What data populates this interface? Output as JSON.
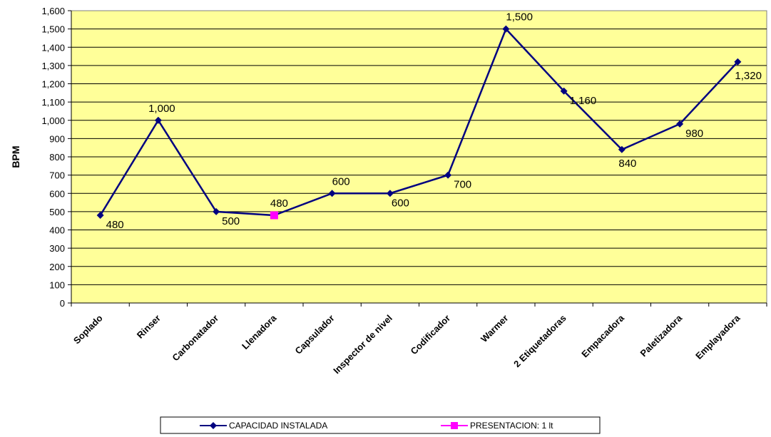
{
  "chart_data": {
    "type": "line",
    "categories": [
      "Soplado",
      "Rinser",
      "Carbonatador",
      "Llenadora",
      "Capsulador",
      "Inspector de nivel",
      "Codificador",
      "Warmer",
      "2 Etiquetadoras",
      "Empacadora",
      "Paletizadora",
      "Emplayadora"
    ],
    "series": [
      {
        "name": "CAPACIDAD INSTALADA",
        "values": [
          480,
          1000,
          500,
          480,
          600,
          600,
          700,
          1500,
          1160,
          840,
          980,
          1320
        ],
        "color": "#000080",
        "marker": "diamond"
      },
      {
        "name": "PRESENTACION: 1 lt",
        "values": [
          null,
          null,
          null,
          480,
          null,
          null,
          null,
          null,
          null,
          null,
          null,
          null
        ],
        "color": "#ff00ff",
        "marker": "square"
      }
    ],
    "data_labels": [
      "480",
      "1,000",
      "500",
      "480",
      "600",
      "600",
      "700",
      "1,500",
      "1,160",
      "840",
      "980",
      "1,320"
    ],
    "ylabel": "BPM",
    "ylim": [
      0,
      1600
    ],
    "yticks": [
      0,
      100,
      200,
      300,
      400,
      500,
      600,
      700,
      800,
      900,
      1000,
      1100,
      1200,
      1300,
      1400,
      1500,
      1600
    ],
    "ytick_labels": [
      "0",
      "100",
      "200",
      "300",
      "400",
      "500",
      "600",
      "700",
      "800",
      "900",
      "1,000",
      "1,100",
      "1,200",
      "1,300",
      "1,400",
      "1,500",
      "1,600"
    ],
    "grid": true,
    "plot_background": "#ffff99",
    "legend_position": "bottom"
  }
}
